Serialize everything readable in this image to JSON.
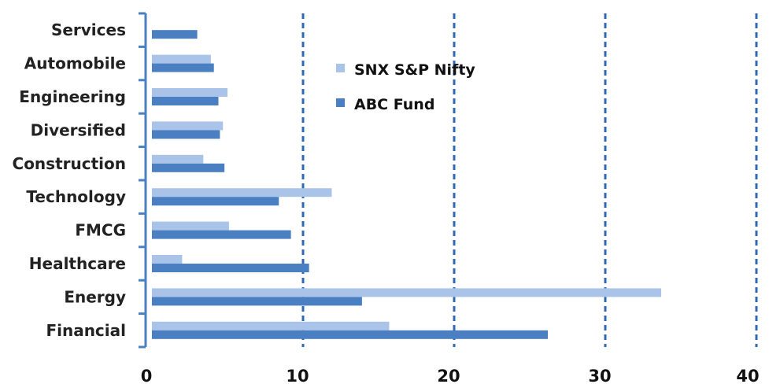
{
  "chart_data": {
    "type": "bar",
    "orientation": "horizontal",
    "categories": [
      "Services",
      "Automobile",
      "Engineering",
      "Diversified",
      "Construction",
      "Technology",
      "FMCG",
      "Healthcare",
      "Energy",
      "Financial"
    ],
    "series": [
      {
        "name": "SNX S&P Nifty",
        "color": "#a9c4e8",
        "values": [
          0,
          3.9,
          5.0,
          4.7,
          3.4,
          11.9,
          5.1,
          2.0,
          33.7,
          15.7
        ]
      },
      {
        "name": "ABC Fund",
        "color": "#4a7fc1",
        "values": [
          3.0,
          4.1,
          4.4,
          4.5,
          4.8,
          8.4,
          9.2,
          10.4,
          13.9,
          26.2
        ]
      }
    ],
    "xlim": [
      0,
      40
    ],
    "xticks": [
      "0",
      "10",
      "20",
      "30",
      "40"
    ],
    "grid": "vertical dashed",
    "legend_position": "top-center"
  }
}
